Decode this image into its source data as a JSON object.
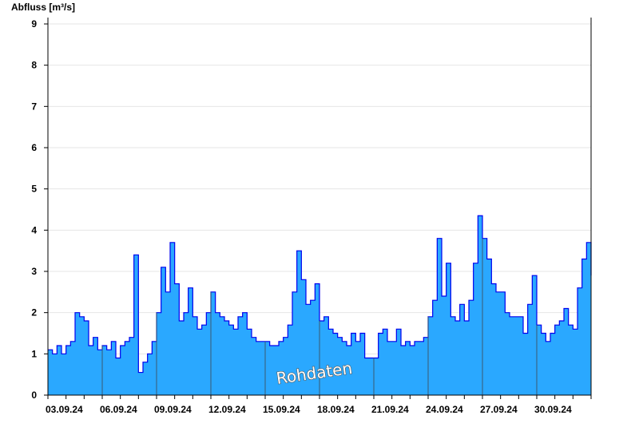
{
  "chart_data": {
    "type": "area",
    "ylabel": "Abfluss [m³/s]",
    "ylim": [
      0,
      9
    ],
    "yticks": [
      0,
      1,
      2,
      3,
      4,
      5,
      6,
      7,
      8,
      9
    ],
    "xrange": [
      "03.09.24",
      "03.10.24"
    ],
    "xtick_labels": [
      "03.09.24",
      "06.09.24",
      "09.09.24",
      "12.09.24",
      "15.09.24",
      "18.09.24",
      "21.09.24",
      "24.09.24",
      "27.09.24",
      "30.09.24"
    ],
    "grid": "horizontal",
    "watermark": "Rohdaten",
    "colors": {
      "fill": "#2aa8ff",
      "line": "#0000ee",
      "grid": "#e6e6e6"
    },
    "sampling": "6h from 03.09.24 00:00",
    "values": [
      1.1,
      1.0,
      1.2,
      1.0,
      1.2,
      1.3,
      2.0,
      1.9,
      1.8,
      1.2,
      1.4,
      1.1,
      1.2,
      1.1,
      1.3,
      0.9,
      1.2,
      1.3,
      1.4,
      3.4,
      0.55,
      0.8,
      1.0,
      1.3,
      2.0,
      3.1,
      2.5,
      3.7,
      2.7,
      1.8,
      2.0,
      2.6,
      1.9,
      1.6,
      1.7,
      2.0,
      2.5,
      2.0,
      1.9,
      1.8,
      1.7,
      1.6,
      1.9,
      2.0,
      1.6,
      1.4,
      1.3,
      1.3,
      1.3,
      1.2,
      1.2,
      1.3,
      1.4,
      1.7,
      2.5,
      3.5,
      2.8,
      2.2,
      2.3,
      2.7,
      1.8,
      1.9,
      1.6,
      1.5,
      1.4,
      1.3,
      1.2,
      1.5,
      1.3,
      1.5,
      0.9,
      0.9,
      0.9,
      1.5,
      1.6,
      1.3,
      1.3,
      1.6,
      1.2,
      1.3,
      1.2,
      1.3,
      1.3,
      1.4,
      1.9,
      2.3,
      3.8,
      2.4,
      3.2,
      1.9,
      1.8,
      2.2,
      1.8,
      2.3,
      3.2,
      4.35,
      3.8,
      3.3,
      2.7,
      2.5,
      2.5,
      2.0,
      1.9,
      1.9,
      1.9,
      1.5,
      2.2,
      2.9,
      1.7,
      1.5,
      1.3,
      1.5,
      1.7,
      1.8,
      2.1,
      1.7,
      1.6,
      2.6,
      3.3,
      3.7,
      2.9
    ]
  }
}
